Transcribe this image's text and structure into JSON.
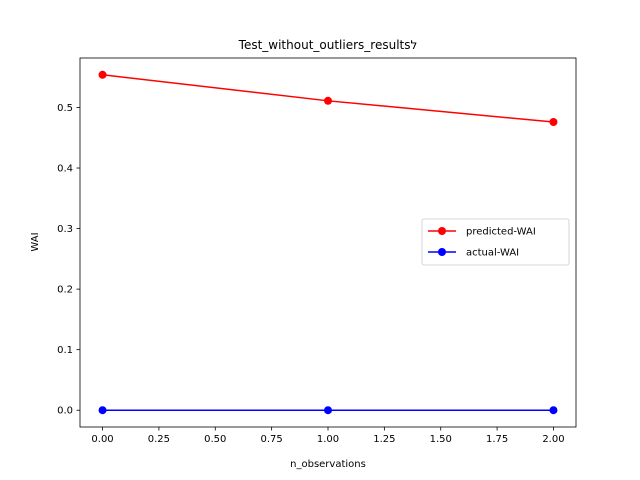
{
  "chart_data": {
    "type": "line",
    "title": "Test_without_outliers_resultsל",
    "xlabel": "n_observations",
    "ylabel": "WAI",
    "x": [
      0,
      1,
      2
    ],
    "xlim": [
      -0.1,
      2.1
    ],
    "ylim": [
      -0.0277,
      0.5817
    ],
    "xticks": [
      0.0,
      0.25,
      0.5,
      0.75,
      1.0,
      1.25,
      1.5,
      1.75,
      2.0
    ],
    "xtick_labels": [
      "0.00",
      "0.25",
      "0.50",
      "0.75",
      "1.00",
      "1.25",
      "1.50",
      "1.75",
      "2.00"
    ],
    "yticks": [
      0.0,
      0.1,
      0.2,
      0.3,
      0.4,
      0.5
    ],
    "ytick_labels": [
      "0.0",
      "0.1",
      "0.2",
      "0.3",
      "0.4",
      "0.5"
    ],
    "grid": false,
    "legend_position": "center-right",
    "series": [
      {
        "name": "predicted-WAI",
        "color": "#ff0000",
        "values": [
          0.554,
          0.511,
          0.476
        ]
      },
      {
        "name": "actual-WAI",
        "color": "#0000ff",
        "values": [
          0.0,
          0.0,
          0.0
        ]
      }
    ]
  }
}
